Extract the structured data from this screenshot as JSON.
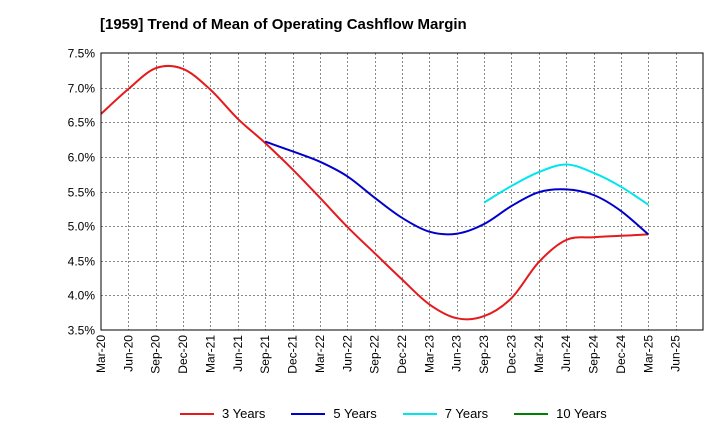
{
  "chart_data": {
    "type": "line",
    "title": "[1959]  Trend of Mean of Operating Cashflow Margin",
    "xlabel": "",
    "ylabel": "",
    "ylim": [
      3.5,
      7.5
    ],
    "y_ticks": [
      "3.5%",
      "4.0%",
      "4.5%",
      "5.0%",
      "5.5%",
      "6.0%",
      "6.5%",
      "7.0%",
      "7.5%"
    ],
    "y_tick_values": [
      3.5,
      4.0,
      4.5,
      5.0,
      5.5,
      6.0,
      6.5,
      7.0,
      7.5
    ],
    "categories": [
      "Mar-20",
      "Jun-20",
      "Sep-20",
      "Dec-20",
      "Mar-21",
      "Jun-21",
      "Sep-21",
      "Dec-21",
      "Mar-22",
      "Jun-22",
      "Sep-22",
      "Dec-22",
      "Mar-23",
      "Jun-23",
      "Sep-23",
      "Dec-23",
      "Mar-24",
      "Jun-24",
      "Sep-24",
      "Dec-24",
      "Mar-25",
      "Jun-25"
    ],
    "series": [
      {
        "name": "3 Years",
        "color": "#e41a1c",
        "values": [
          6.62,
          6.98,
          7.28,
          7.27,
          6.97,
          6.55,
          6.2,
          5.82,
          5.41,
          4.99,
          4.61,
          4.23,
          3.87,
          3.67,
          3.7,
          3.96,
          4.48,
          4.8,
          4.84,
          4.86,
          4.88,
          null
        ]
      },
      {
        "name": "5 Years",
        "color": "#0000cd",
        "values": [
          null,
          null,
          null,
          null,
          null,
          null,
          6.22,
          6.08,
          5.93,
          5.72,
          5.41,
          5.12,
          4.92,
          4.89,
          5.03,
          5.29,
          5.49,
          5.53,
          5.45,
          5.22,
          4.88,
          null
        ]
      },
      {
        "name": "7 Years",
        "color": "#00e5ee",
        "values": [
          null,
          null,
          null,
          null,
          null,
          null,
          null,
          null,
          null,
          null,
          null,
          null,
          null,
          null,
          5.34,
          5.58,
          5.78,
          5.89,
          5.77,
          5.57,
          5.31,
          null
        ]
      },
      {
        "name": "10 Years",
        "color": "#008000",
        "values": [
          null,
          null,
          null,
          null,
          null,
          null,
          null,
          null,
          null,
          null,
          null,
          null,
          null,
          null,
          null,
          null,
          null,
          null,
          null,
          null,
          null,
          null
        ]
      }
    ]
  }
}
